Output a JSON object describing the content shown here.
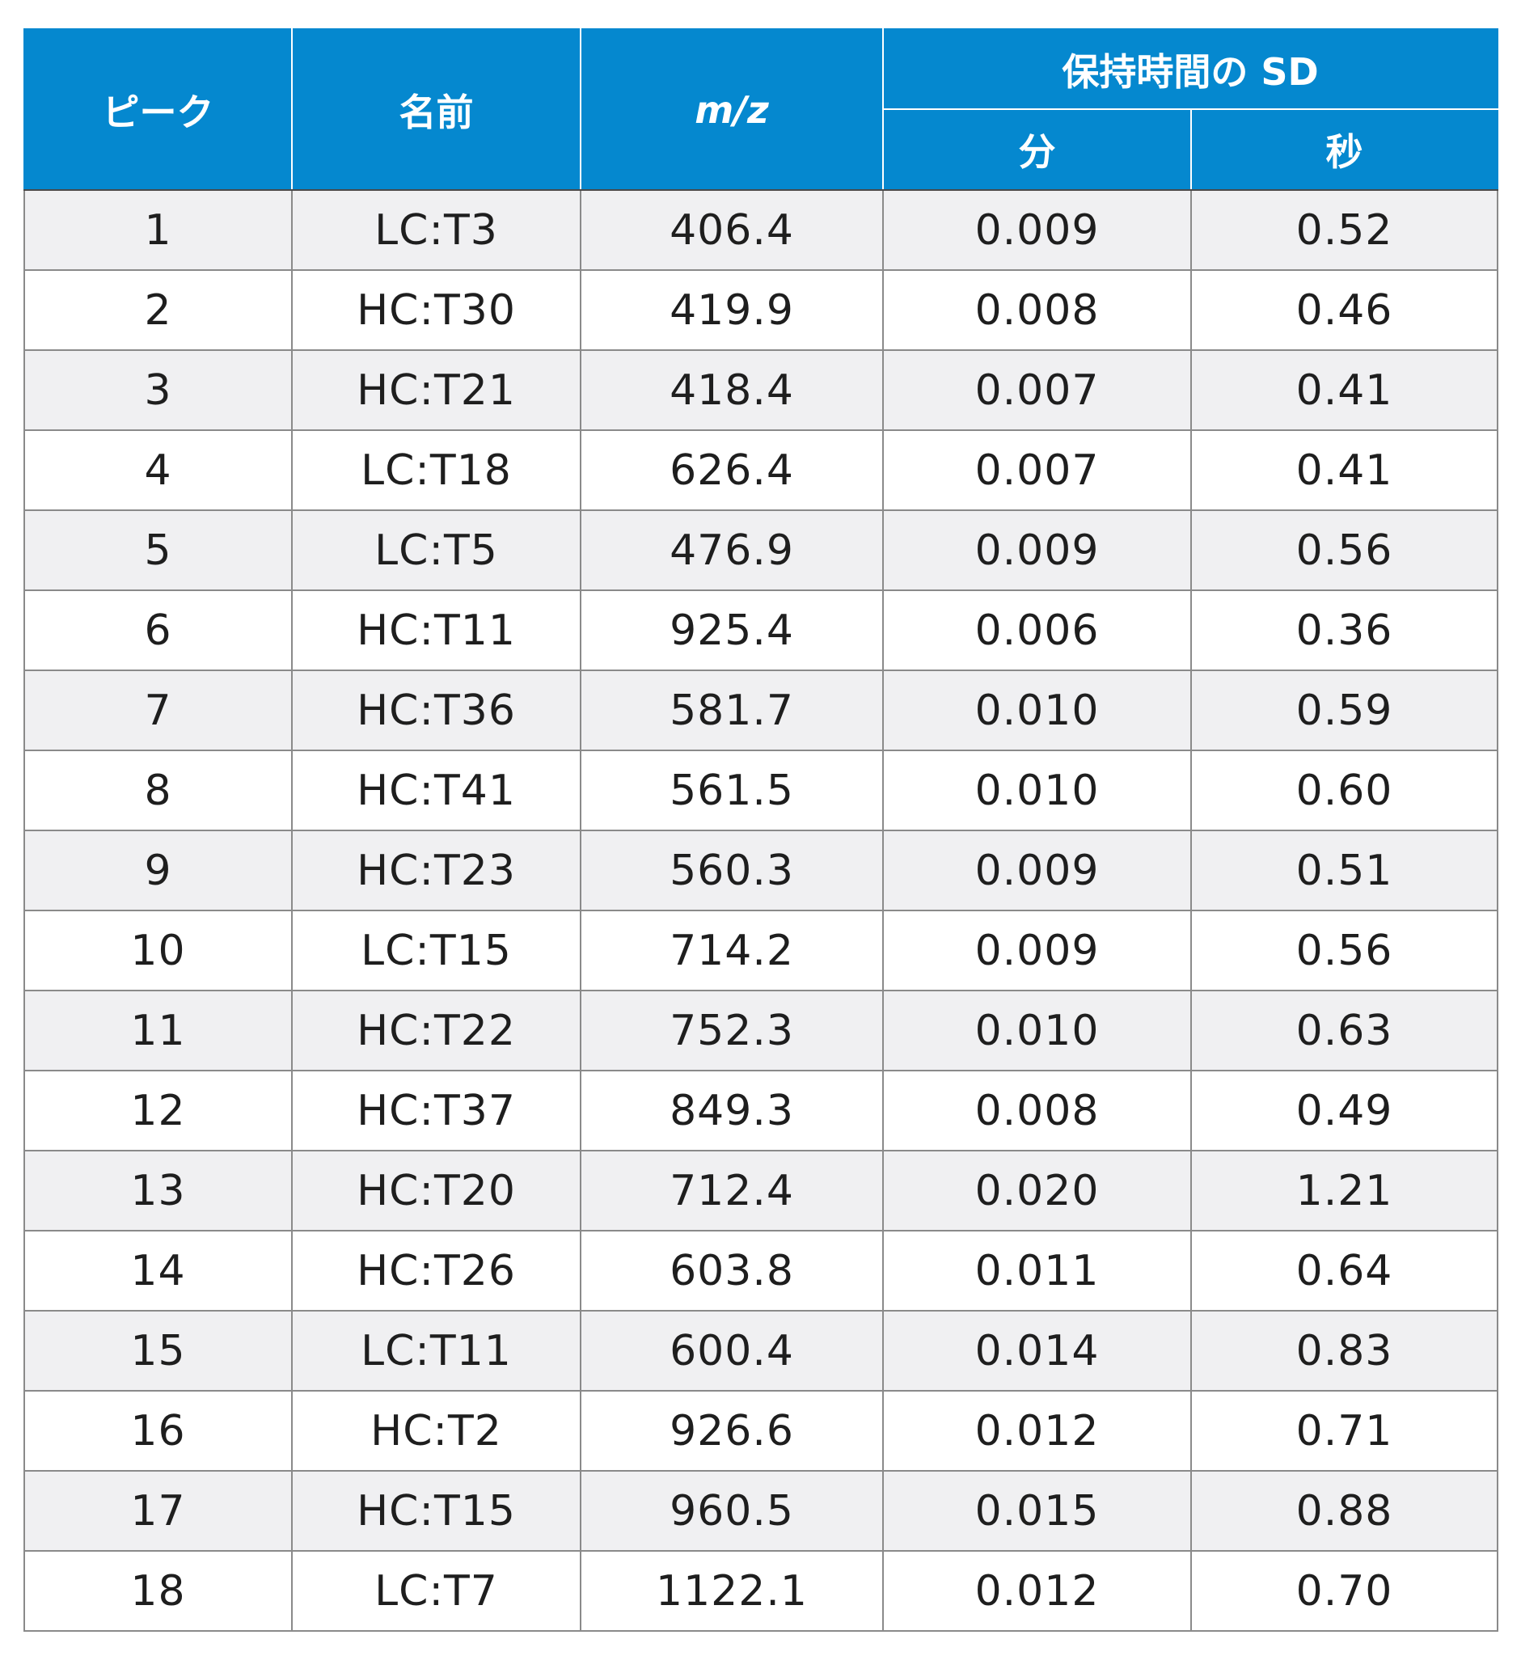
{
  "table": {
    "headers": {
      "peak": "ピーク",
      "name": "名前",
      "mz": "m/z",
      "rt_sd": "保持時間の SD",
      "minutes": "分",
      "seconds": "秒"
    },
    "rows": [
      {
        "peak": "1",
        "name": "LC:T3",
        "mz": "406.4",
        "min": "0.009",
        "sec": "0.52"
      },
      {
        "peak": "2",
        "name": "HC:T30",
        "mz": "419.9",
        "min": "0.008",
        "sec": "0.46"
      },
      {
        "peak": "3",
        "name": "HC:T21",
        "mz": "418.4",
        "min": "0.007",
        "sec": "0.41"
      },
      {
        "peak": "4",
        "name": "LC:T18",
        "mz": "626.4",
        "min": "0.007",
        "sec": "0.41"
      },
      {
        "peak": "5",
        "name": "LC:T5",
        "mz": "476.9",
        "min": "0.009",
        "sec": "0.56"
      },
      {
        "peak": "6",
        "name": "HC:T11",
        "mz": "925.4",
        "min": "0.006",
        "sec": "0.36"
      },
      {
        "peak": "7",
        "name": "HC:T36",
        "mz": "581.7",
        "min": "0.010",
        "sec": "0.59"
      },
      {
        "peak": "8",
        "name": "HC:T41",
        "mz": "561.5",
        "min": "0.010",
        "sec": "0.60"
      },
      {
        "peak": "9",
        "name": "HC:T23",
        "mz": "560.3",
        "min": "0.009",
        "sec": "0.51"
      },
      {
        "peak": "10",
        "name": "LC:T15",
        "mz": "714.2",
        "min": "0.009",
        "sec": "0.56"
      },
      {
        "peak": "11",
        "name": "HC:T22",
        "mz": "752.3",
        "min": "0.010",
        "sec": "0.63"
      },
      {
        "peak": "12",
        "name": "HC:T37",
        "mz": "849.3",
        "min": "0.008",
        "sec": "0.49"
      },
      {
        "peak": "13",
        "name": "HC:T20",
        "mz": "712.4",
        "min": "0.020",
        "sec": "1.21"
      },
      {
        "peak": "14",
        "name": "HC:T26",
        "mz": "603.8",
        "min": "0.011",
        "sec": "0.64"
      },
      {
        "peak": "15",
        "name": "LC:T11",
        "mz": "600.4",
        "min": "0.014",
        "sec": "0.83"
      },
      {
        "peak": "16",
        "name": "HC:T2",
        "mz": "926.6",
        "min": "0.012",
        "sec": "0.71"
      },
      {
        "peak": "17",
        "name": "HC:T15",
        "mz": "960.5",
        "min": "0.015",
        "sec": "0.88"
      },
      {
        "peak": "18",
        "name": "LC:T7",
        "mz": "1122.1",
        "min": "0.012",
        "sec": "0.70"
      }
    ]
  }
}
